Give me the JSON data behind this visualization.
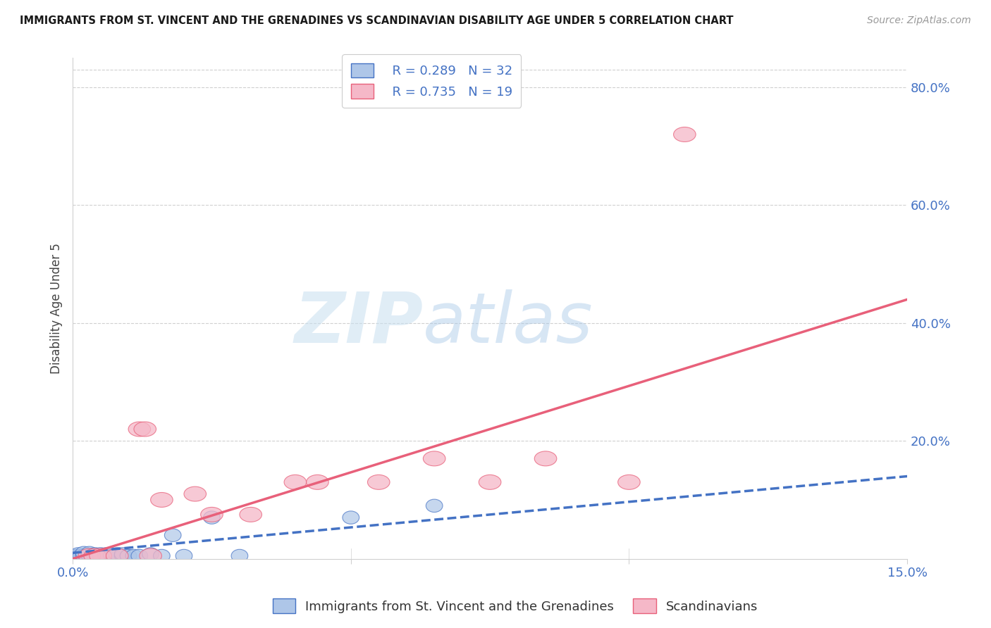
{
  "title": "IMMIGRANTS FROM ST. VINCENT AND THE GRENADINES VS SCANDINAVIAN DISABILITY AGE UNDER 5 CORRELATION CHART",
  "source": "Source: ZipAtlas.com",
  "ylabel": "Disability Age Under 5",
  "xlim": [
    0.0,
    0.15
  ],
  "ylim": [
    0.0,
    0.85
  ],
  "xticks": [
    0.0,
    0.05,
    0.1,
    0.15
  ],
  "xtick_labels": [
    "0.0%",
    "",
    "",
    "15.0%"
  ],
  "yticks_right": [
    0.0,
    0.2,
    0.4,
    0.6,
    0.8
  ],
  "ytick_labels_right": [
    "",
    "20.0%",
    "40.0%",
    "60.0%",
    "80.0%"
  ],
  "blue_scatter_x": [
    0.0005,
    0.001,
    0.001,
    0.0015,
    0.002,
    0.002,
    0.003,
    0.003,
    0.003,
    0.004,
    0.004,
    0.005,
    0.005,
    0.006,
    0.006,
    0.007,
    0.007,
    0.008,
    0.008,
    0.009,
    0.009,
    0.01,
    0.011,
    0.012,
    0.014,
    0.016,
    0.018,
    0.02,
    0.025,
    0.03,
    0.05,
    0.065
  ],
  "blue_scatter_y": [
    0.005,
    0.005,
    0.008,
    0.005,
    0.005,
    0.01,
    0.005,
    0.007,
    0.01,
    0.005,
    0.008,
    0.005,
    0.008,
    0.005,
    0.008,
    0.005,
    0.008,
    0.005,
    0.008,
    0.005,
    0.008,
    0.005,
    0.005,
    0.005,
    0.008,
    0.005,
    0.04,
    0.005,
    0.07,
    0.005,
    0.07,
    0.09
  ],
  "pink_scatter_x": [
    0.003,
    0.004,
    0.005,
    0.008,
    0.012,
    0.013,
    0.014,
    0.016,
    0.022,
    0.025,
    0.032,
    0.04,
    0.044,
    0.055,
    0.065,
    0.075,
    0.085,
    0.1,
    0.11
  ],
  "pink_scatter_y": [
    0.005,
    0.005,
    0.005,
    0.005,
    0.22,
    0.22,
    0.005,
    0.1,
    0.11,
    0.075,
    0.075,
    0.13,
    0.13,
    0.13,
    0.17,
    0.13,
    0.17,
    0.13,
    0.72
  ],
  "blue_color": "#aec6e8",
  "pink_color": "#f5b8c8",
  "blue_line_color": "#4472c4",
  "pink_line_color": "#e8607a",
  "blue_trendline_x": [
    0.0,
    0.15
  ],
  "blue_trendline_y": [
    0.01,
    0.14
  ],
  "pink_trendline_x": [
    0.0,
    0.15
  ],
  "pink_trendline_y": [
    0.0,
    0.44
  ],
  "legend_R_blue": "R = 0.289",
  "legend_N_blue": "N = 32",
  "legend_R_pink": "R = 0.735",
  "legend_N_pink": "N = 19",
  "legend_label_blue": "Immigrants from St. Vincent and the Grenadines",
  "legend_label_pink": "Scandinavians",
  "watermark_zip": "ZIP",
  "watermark_atlas": "atlas",
  "background_color": "#ffffff",
  "grid_color": "#d0d0d0"
}
